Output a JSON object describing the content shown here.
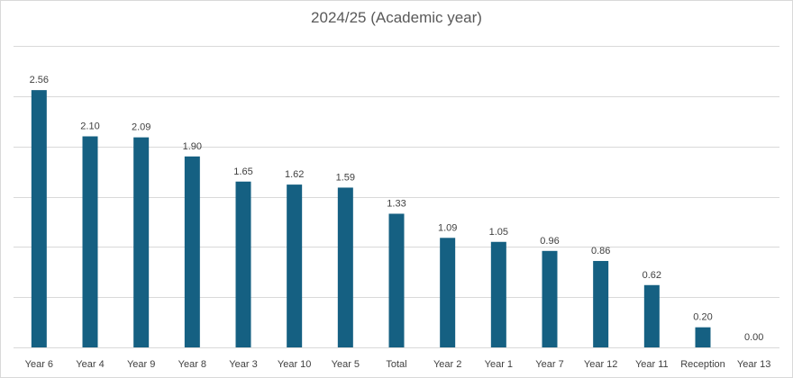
{
  "chart_data": {
    "type": "bar",
    "title": "2024/25 (Academic year)",
    "xlabel": "",
    "ylabel": "",
    "categories": [
      "Year 6",
      "Year 4",
      "Year 9",
      "Year 8",
      "Year 3",
      "Year 10",
      "Year 5",
      "Total",
      "Year 2",
      "Year 1",
      "Year 7",
      "Year 12",
      "Year 11",
      "Reception",
      "Year 13"
    ],
    "values": [
      2.56,
      2.1,
      2.09,
      1.9,
      1.65,
      1.62,
      1.59,
      1.33,
      1.09,
      1.05,
      0.96,
      0.86,
      0.62,
      0.2,
      0.0
    ],
    "data_labels": [
      "2.56",
      "2.10",
      "2.09",
      "1.90",
      "1.65",
      "1.62",
      "1.59",
      "1.33",
      "1.09",
      "1.05",
      "0.96",
      "0.86",
      "0.62",
      "0.20",
      "0.00"
    ],
    "ylim": [
      0,
      3.0
    ],
    "gridline_step": 0.5,
    "grid": true,
    "legend": "none",
    "colors": {
      "bar": "#156082",
      "grid": "#d9d9d9",
      "text": "#404040"
    }
  }
}
